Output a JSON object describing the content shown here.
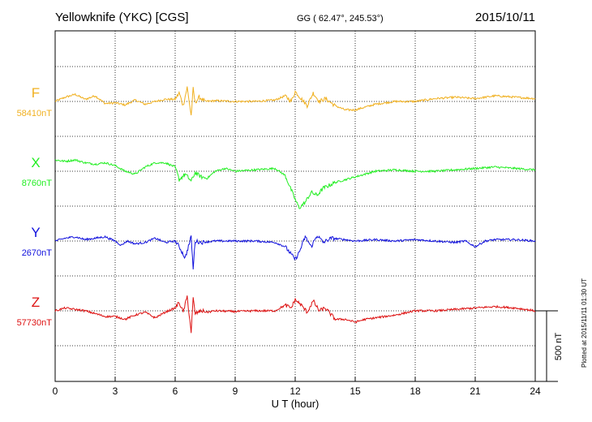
{
  "chart_data": {
    "type": "line",
    "title": "Yellowknife (YKC)  [CGS]",
    "coords": "GG ( 62.47°, 245.53°)",
    "date": "2015/10/11",
    "xlabel": "U T (hour)",
    "xlim": [
      0,
      24
    ],
    "xticks": [
      "0",
      "3",
      "6",
      "9",
      "12",
      "15",
      "18",
      "21",
      "24"
    ],
    "scale_label": "500 nT",
    "plotted_note": "Plotted at 2015/11/11 01:30 UT",
    "series": [
      {
        "name": "F",
        "baseline": "58410nT",
        "color": "#f0b020",
        "x": [
          0,
          0.5,
          1,
          1.5,
          2,
          2.5,
          3,
          3.5,
          4,
          4.5,
          5,
          5.5,
          6,
          6.2,
          6.4,
          6.6,
          6.8,
          6.9,
          7,
          7.2,
          7.5,
          8,
          9,
          10,
          11,
          11.5,
          11.8,
          12,
          12.3,
          12.6,
          12.9,
          13.2,
          13.5,
          14,
          14.5,
          15,
          15.5,
          16,
          17,
          18,
          19,
          20,
          21,
          22,
          23,
          24
        ],
        "values": [
          0,
          30,
          50,
          15,
          40,
          -15,
          -10,
          -25,
          10,
          -20,
          0,
          15,
          15,
          60,
          -30,
          100,
          -100,
          90,
          -10,
          30,
          0,
          5,
          0,
          0,
          10,
          40,
          0,
          70,
          20,
          -30,
          60,
          0,
          20,
          -30,
          -60,
          -60,
          -40,
          -20,
          0,
          0,
          20,
          30,
          20,
          40,
          30,
          20
        ]
      },
      {
        "name": "X",
        "baseline": "8760nT",
        "color": "#22ee22",
        "x": [
          0,
          0.5,
          1,
          1.5,
          2,
          2.5,
          3,
          3.5,
          4,
          4.5,
          5,
          5.5,
          6,
          6.2,
          6.5,
          6.8,
          7,
          7.3,
          7.6,
          8,
          8.5,
          9,
          10,
          11,
          11.5,
          12,
          12.2,
          12.5,
          12.8,
          13.1,
          13.4,
          14,
          14.5,
          15,
          15.5,
          16,
          17,
          18,
          19,
          20,
          21,
          22,
          23,
          24
        ],
        "values": [
          80,
          70,
          80,
          60,
          50,
          60,
          40,
          0,
          -20,
          30,
          60,
          60,
          30,
          -60,
          -20,
          -70,
          -10,
          -40,
          -50,
          0,
          20,
          0,
          10,
          20,
          -30,
          -200,
          -260,
          -220,
          -150,
          -170,
          -120,
          -80,
          -60,
          -40,
          -20,
          0,
          10,
          0,
          0,
          10,
          20,
          30,
          20,
          10
        ]
      },
      {
        "name": "Y",
        "baseline": "2670nT",
        "color": "#1010dd",
        "x": [
          0,
          0.5,
          1,
          1.5,
          2,
          2.5,
          3,
          3.3,
          3.6,
          4,
          4.5,
          5,
          5.5,
          6,
          6.2,
          6.5,
          6.8,
          6.9,
          7,
          7.3,
          8,
          9,
          10,
          11,
          11.5,
          12,
          12.2,
          12.5,
          12.8,
          13.1,
          13.4,
          13.8,
          14.5,
          15,
          16,
          17,
          18,
          19,
          20,
          20.5,
          21,
          21.5,
          22,
          23,
          24
        ],
        "values": [
          0,
          20,
          30,
          10,
          20,
          30,
          0,
          -30,
          0,
          -20,
          -10,
          20,
          -10,
          0,
          -40,
          -120,
          30,
          -200,
          0,
          -10,
          0,
          0,
          0,
          -10,
          -40,
          -130,
          -80,
          30,
          -40,
          40,
          -10,
          20,
          10,
          0,
          10,
          0,
          10,
          0,
          -10,
          0,
          -40,
          0,
          10,
          10,
          0
        ]
      },
      {
        "name": "Z",
        "baseline": "57730nT",
        "color": "#dd1111",
        "x": [
          0,
          0.5,
          1,
          1.5,
          2,
          2.5,
          3,
          3.5,
          4,
          4.5,
          5,
          5.5,
          6,
          6.2,
          6.4,
          6.6,
          6.8,
          6.9,
          7,
          7.3,
          7.6,
          8,
          9,
          10,
          11,
          11.5,
          11.8,
          12,
          12.3,
          12.6,
          12.9,
          13.2,
          13.5,
          14,
          14.5,
          15,
          15.5,
          16,
          17,
          18,
          19,
          20,
          21,
          22,
          23,
          24
        ],
        "values": [
          0,
          20,
          10,
          0,
          -20,
          -40,
          -40,
          -60,
          -30,
          -10,
          -50,
          -10,
          20,
          60,
          -10,
          100,
          -150,
          90,
          -20,
          0,
          -10,
          0,
          -5,
          0,
          0,
          40,
          20,
          80,
          40,
          -10,
          70,
          0,
          20,
          -60,
          -60,
          -80,
          -60,
          -50,
          -30,
          0,
          0,
          10,
          20,
          30,
          20,
          0
        ]
      }
    ]
  }
}
